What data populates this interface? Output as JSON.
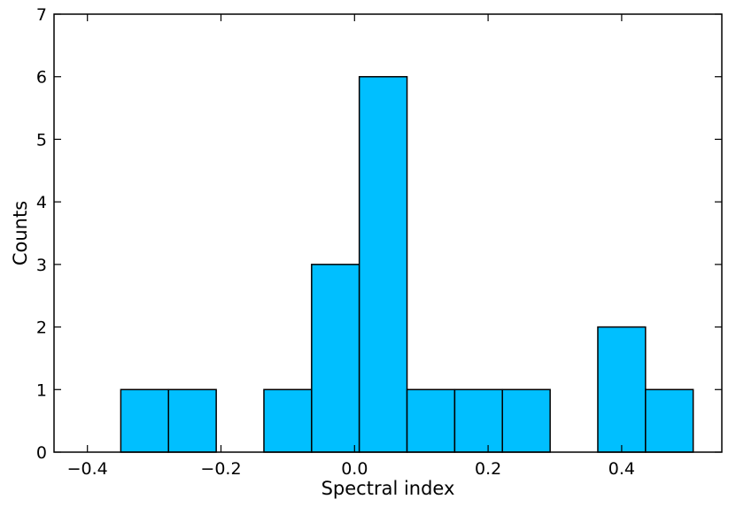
{
  "chart_data": {
    "type": "bar",
    "title": "",
    "xlabel": "Spectral index",
    "ylabel": "Counts",
    "xlim": [
      -0.45,
      0.55
    ],
    "ylim": [
      0,
      7
    ],
    "x_ticks": [
      -0.4,
      -0.2,
      0.0,
      0.2,
      0.4
    ],
    "x_tick_labels": [
      "−0.4",
      "−0.2",
      "0.0",
      "0.2",
      "0.4"
    ],
    "y_ticks": [
      0,
      1,
      2,
      3,
      4,
      5,
      6,
      7
    ],
    "y_tick_labels": [
      "0",
      "1",
      "2",
      "3",
      "4",
      "5",
      "6",
      "7"
    ],
    "bin_edges": [
      -0.35,
      -0.2786,
      -0.2071,
      -0.1357,
      -0.0643,
      0.0071,
      0.0786,
      0.15,
      0.2214,
      0.2929,
      0.3643,
      0.4357,
      0.5071
    ],
    "counts": [
      1,
      1,
      0,
      1,
      3,
      6,
      1,
      1,
      1,
      0,
      2,
      1
    ],
    "bar_color": "#00bfff",
    "edge_color": "#000000",
    "grid": false,
    "legend": "none"
  }
}
